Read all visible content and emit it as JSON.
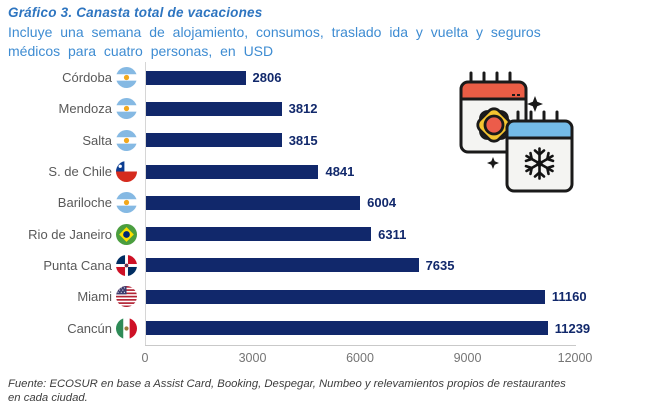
{
  "header": {
    "title": "Gráfico 3. Canasta total de vacaciones",
    "subtitle_line1": "Incluye una semana de alojamiento, consumos, traslado ida y vuelta y seguros",
    "subtitle_line2": "médicos para cuatro personas, en USD"
  },
  "chart_data": {
    "type": "bar",
    "orientation": "horizontal",
    "title": "Gráfico 3. Canasta total de vacaciones",
    "subtitle": "Incluye una semana de alojamiento, consumos, traslado ida y vuelta y seguros médicos para cuatro personas, en USD",
    "categories": [
      "Córdoba",
      "Mendoza",
      "Salta",
      "S. de Chile",
      "Bariloche",
      "Rio de Janeiro",
      "Punta Cana",
      "Miami",
      "Cancún"
    ],
    "values": [
      2806,
      3812,
      3815,
      4841,
      6004,
      6311,
      7635,
      11160,
      11239
    ],
    "flags": [
      "argentina",
      "argentina",
      "argentina",
      "chile",
      "argentina",
      "brazil",
      "dominican-republic",
      "usa",
      "mexico"
    ],
    "xlabel": "",
    "ylabel": "",
    "xlim": [
      0,
      12000
    ],
    "xticks": [
      0,
      3000,
      6000,
      9000,
      12000
    ],
    "grid": false,
    "legend": false,
    "bar_color": "#11286b",
    "value_label_color": "#11286b"
  },
  "illustration": {
    "name": "summer-winter-calendars",
    "back_calendar_header_color": "#ea5d45",
    "front_calendar_header_color": "#74bbe8",
    "sun_petal_color": "#f4c430",
    "sun_center_color": "#ec5c4a",
    "body_color": "#f4f4f2",
    "outline_color": "#1a1a1a"
  },
  "footer": {
    "source_line1": "Fuente: ECOSUR en base a Assist Card, Booking, Despegar, Numbeo y relevamientos propios de restaurantes",
    "source_line2": "en cada ciudad."
  },
  "colors": {
    "title": "#2e75c0",
    "subtitle": "#3e8cd2",
    "category_label": "#595959",
    "axis_label": "#757575",
    "axis_line": "#d6d6d6"
  }
}
